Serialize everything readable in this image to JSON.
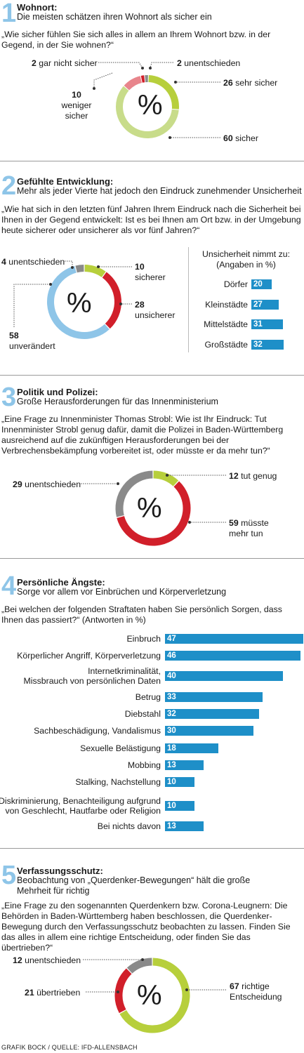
{
  "colors": {
    "green_light": "#c8dc8a",
    "green": "#b7cf3c",
    "pink": "#e8858c",
    "red": "#d11f2a",
    "gray": "#8a8a8a",
    "blue_light": "#8ec5e8",
    "blue": "#1e8fc8"
  },
  "credit": "GRAFIK BOCK / QUELLE: IFD-ALLENSBACH",
  "sections": [
    {
      "number": "1",
      "title": "Wohnort:",
      "subtitle": "Die meisten schätzen ihren Wohnort als sicher ein",
      "question": "„Wie sicher fühlen Sie sich alles in allem an Ihrem Wohnort bzw. in der Gegend, in der Sie wohnen?“",
      "center": "%"
    },
    {
      "number": "2",
      "title": "Gefühlte Entwicklung:",
      "subtitle": "Mehr als jeder Vierte hat jedoch den Eindruck zunehmender Unsicherheit",
      "question": "„Wie hat sich in den letzten fünf Jahren Ihrem Eindruck nach die Sicherheit bei Ihnen in der Gegend entwickelt: Ist es bei Ihnen am Ort bzw. in der Umgebung heute sicherer oder unsicherer als vor fünf Jahren?“",
      "center": "%",
      "bars_title": "Unsicherheit nimmt zu:",
      "bars_subtitle": "(Angaben in %)"
    },
    {
      "number": "3",
      "title": "Politik und Polizei:",
      "subtitle": "Große Herausforderungen für das Innenministerium",
      "question": "„Eine Frage zu Innenminister Thomas Strobl: Wie ist Ihr Eindruck: Tut Innenminister Strobl genug dafür, damit die Polizei in Baden-Württemberg ausreichend auf die zukünftigen Herausforderungen bei der Verbrechensbekämpfung vorbereitet ist, oder müsste er da mehr tun?“",
      "center": "%"
    },
    {
      "number": "4",
      "title": "Persönliche Ängste:",
      "subtitle": "Sorge vor allem vor Einbrüchen und Körperverletzung",
      "question": "„Bei welchen der folgenden Straftaten haben Sie persönlich Sorgen, dass Ihnen das passiert?“ (Antworten in %)"
    },
    {
      "number": "5",
      "title": "Verfassungsschutz:",
      "subtitle": "Beobachtung von „Querdenker-Bewegungen“ hält die große Mehrheit für richtig",
      "question": "„Eine Frage zu den sogenannten Querdenkern bzw. Corona-Leugnern: Die Behörden in Baden-Württemberg haben beschlossen, die Querdenker-Bewegung durch den Verfassungsschutz beobachten zu lassen. Finden Sie das alles in allem eine richtige Entscheidung, oder finden Sie das übertrieben?“",
      "center": "%"
    }
  ],
  "chart_data": [
    {
      "type": "pie",
      "style": "donut",
      "title": "Wohnort",
      "slices": [
        {
          "label": "sehr sicher",
          "value": 26,
          "color": "#b7cf3c"
        },
        {
          "label": "sicher",
          "value": 60,
          "color": "#c8dc8a"
        },
        {
          "label": "weniger sicher",
          "value": 10,
          "color": "#e8858c"
        },
        {
          "label": "gar nicht sicher",
          "value": 2,
          "color": "#d11f2a"
        },
        {
          "label": "unentschieden",
          "value": 2,
          "color": "#8a8a8a"
        }
      ]
    },
    {
      "type": "pie",
      "style": "donut",
      "title": "Gefühlte Entwicklung",
      "slices": [
        {
          "label": "sicherer",
          "value": 10,
          "color": "#b7cf3c"
        },
        {
          "label": "unsicherer",
          "value": 28,
          "color": "#d11f2a"
        },
        {
          "label": "unverändert",
          "value": 58,
          "color": "#8ec5e8"
        },
        {
          "label": "unentschieden",
          "value": 4,
          "color": "#8a8a8a"
        }
      ]
    },
    {
      "type": "bar",
      "orientation": "horizontal",
      "title": "Unsicherheit nimmt zu:",
      "subtitle": "(Angaben in %)",
      "categories": [
        "Dörfer",
        "Kleinstädte",
        "Mittelstädte",
        "Großstädte"
      ],
      "values": [
        20,
        27,
        31,
        32
      ],
      "color": "#1e8fc8"
    },
    {
      "type": "pie",
      "style": "donut",
      "title": "Politik und Polizei",
      "slices": [
        {
          "label": "tut genug",
          "value": 12,
          "color": "#b7cf3c"
        },
        {
          "label": "müsste mehr tun",
          "value": 59,
          "color": "#d11f2a"
        },
        {
          "label": "unentschieden",
          "value": 29,
          "color": "#8a8a8a"
        }
      ]
    },
    {
      "type": "bar",
      "orientation": "horizontal",
      "title": "Persönliche Ängste",
      "categories": [
        "Einbruch",
        "Körperlicher Angriff, Körperverletzung",
        "Internetkriminalität, Missbrauch von persönlichen Daten",
        "Betrug",
        "Diebstahl",
        "Sachbeschädigung, Vandalismus",
        "Sexuelle Belästigung",
        "Mobbing",
        "Stalking, Nachstellung",
        "Diskriminierung, Benachteiligung aufgrund von Geschlecht, Hautfarbe oder Religion",
        "Bei nichts davon"
      ],
      "values": [
        47,
        46,
        40,
        33,
        32,
        30,
        18,
        13,
        10,
        10,
        13
      ],
      "color": "#1e8fc8"
    },
    {
      "type": "pie",
      "style": "donut",
      "title": "Verfassungsschutz",
      "slices": [
        {
          "label": "richtige Entscheidung",
          "value": 67,
          "color": "#b7cf3c"
        },
        {
          "label": "übertrieben",
          "value": 21,
          "color": "#d11f2a"
        },
        {
          "label": "unentschieden",
          "value": 12,
          "color": "#8a8a8a"
        }
      ]
    }
  ],
  "labels": {
    "s1": {
      "gar_nicht_num": "2",
      "gar_nicht_txt": "gar nicht sicher",
      "unent_num": "2",
      "unent_txt": "unentschieden",
      "sehr_num": "26",
      "sehr_txt": "sehr sicher",
      "weniger_num": "10",
      "weniger_txt1": "weniger",
      "weniger_txt2": "sicher",
      "sicher_num": "60",
      "sicher_txt": "sicher"
    },
    "s2": {
      "unent_num": "4",
      "unent_txt": "unentschieden",
      "sicherer_num": "10",
      "sicherer_txt": "sicherer",
      "unsicherer_num": "28",
      "unsicherer_txt": "unsicherer",
      "unver_num": "58",
      "unver_txt": "unverändert"
    },
    "s3": {
      "unent_num": "29",
      "unent_txt": "unentschieden",
      "genug_num": "12",
      "genug_txt": "tut genug",
      "mehr_num": "59",
      "mehr_txt1": "müsste",
      "mehr_txt2": "mehr tun"
    },
    "s5": {
      "unent_num": "12",
      "unent_txt": "unentschieden",
      "ueber_num": "21",
      "ueber_txt": "übertrieben",
      "richtig_num": "67",
      "richtig_txt1": "richtige",
      "richtig_txt2": "Entscheidung"
    }
  }
}
